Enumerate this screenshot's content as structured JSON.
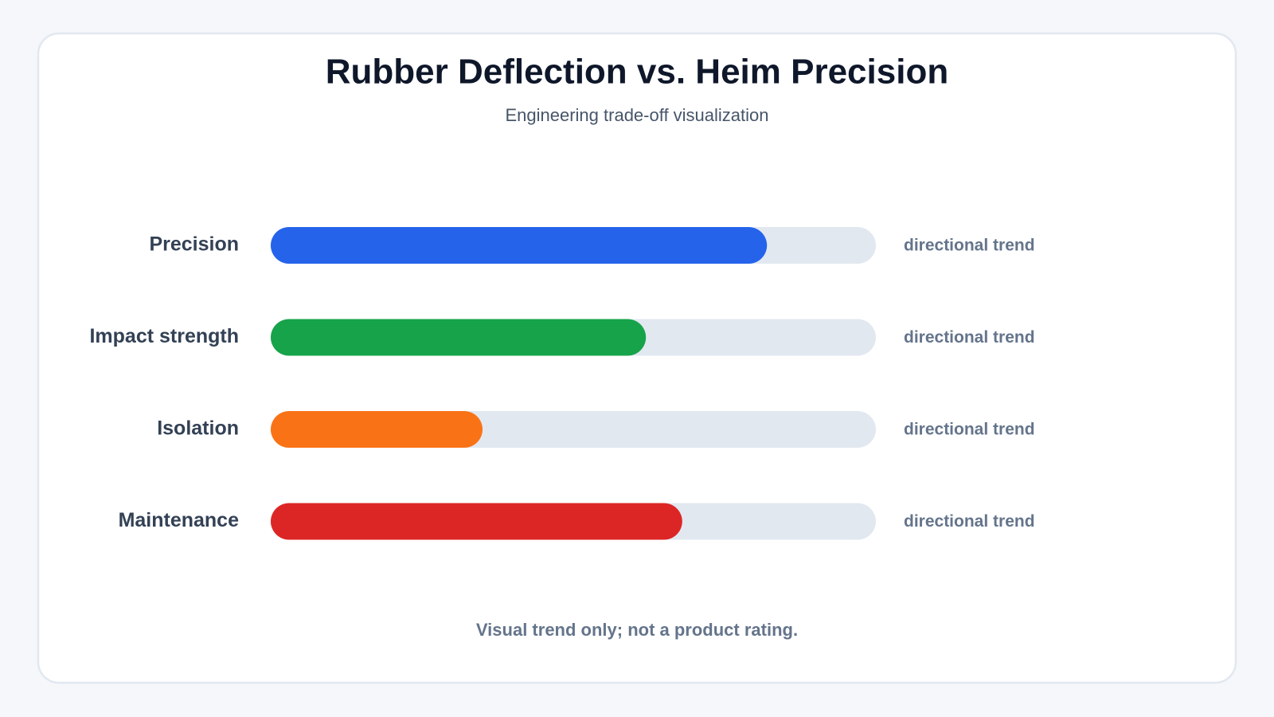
{
  "chart_data": {
    "type": "bar",
    "orientation": "horizontal",
    "title": "Rubber Deflection vs. Heim Precision",
    "subtitle": "Engineering trade-off visualization",
    "categories": [
      "Precision",
      "Impact strength",
      "Isolation",
      "Maintenance"
    ],
    "values": [
      82,
      62,
      35,
      68
    ],
    "colors": [
      "#2563eb",
      "#16a34a",
      "#f97316",
      "#dc2626"
    ],
    "track_color": "#e2e8f0",
    "xlim": [
      0,
      100
    ],
    "row_notes": [
      "directional trend",
      "directional trend",
      "directional trend",
      "directional trend"
    ],
    "note": "Visual trend only; not a product rating."
  }
}
